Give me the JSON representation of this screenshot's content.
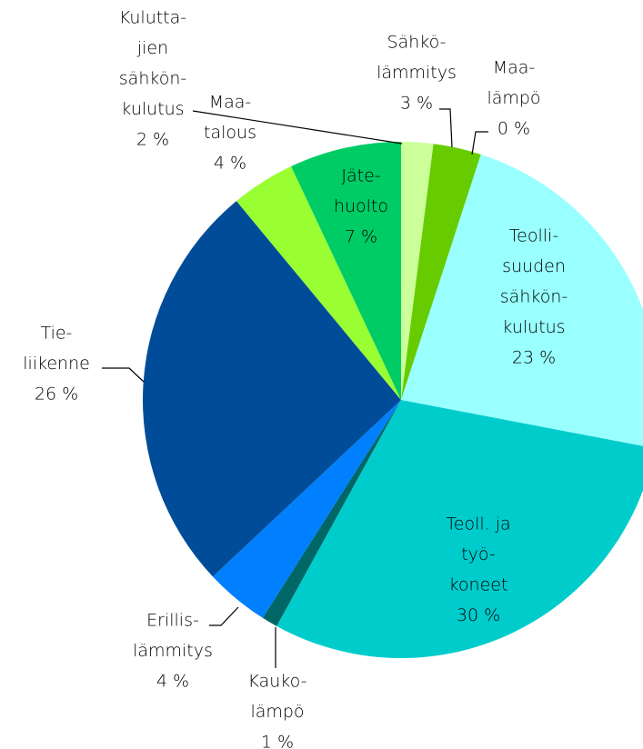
{
  "chart_data": {
    "type": "pie",
    "categories": [
      [
        "Kulutta-",
        "jien",
        "sähkön-",
        "kulutus"
      ],
      [
        "Sähkö-",
        "lämmitys"
      ],
      [
        "Maa-",
        "lämpö"
      ],
      [
        "Teolli-",
        "suuden",
        "sähkön-",
        "kulutus"
      ],
      [
        "Teoll. ja",
        "työ-",
        "koneet"
      ],
      [
        "Kauko-",
        "lämpö"
      ],
      [
        "Erillis-",
        "lämmitys"
      ],
      [
        "Tie-",
        "liikenne"
      ],
      [
        "Maa-",
        "talous"
      ],
      [
        "Jäte-",
        "huolto"
      ]
    ],
    "values": [
      2,
      3,
      0,
      23,
      30,
      1,
      4,
      26,
      4,
      7
    ],
    "value_labels": [
      "2 %",
      "3 %",
      "0 %",
      "23 %",
      "30 %",
      "1 %",
      "4 %",
      "26 %",
      "4 %",
      "7 %"
    ],
    "colors": [
      "#ccff99",
      "#66cc00",
      "#33aa00",
      "#99ffff",
      "#00cccc",
      "#006666",
      "#0080ff",
      "#004c99",
      "#99ff33",
      "#00cc66"
    ]
  }
}
